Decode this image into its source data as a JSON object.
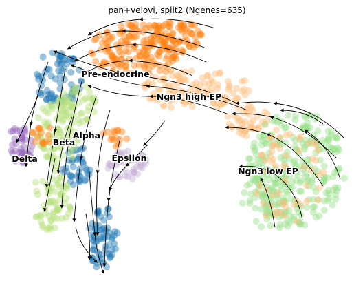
{
  "chart_data": {
    "type": "scatter",
    "title": "pan+velovi, split2 (Ngenes=635)",
    "xlabel": "",
    "ylabel": "",
    "grid": false,
    "axes": "off",
    "overlay": "velocity streamlines",
    "clusters": [
      {
        "name": "Pre-endocrine",
        "color": "#ff7f0e"
      },
      {
        "name": "Ngn3 high EP",
        "color": "#ffbb78"
      },
      {
        "name": "Ngn3 low EP",
        "color": "#98df8a"
      },
      {
        "name": "Alpha",
        "color": "#1f77b4"
      },
      {
        "name": "Beta",
        "color": "#b5df7a"
      },
      {
        "name": "Delta",
        "color": "#9467bd"
      },
      {
        "name": "Epsilon",
        "color": "#c5b0d5"
      }
    ]
  }
}
